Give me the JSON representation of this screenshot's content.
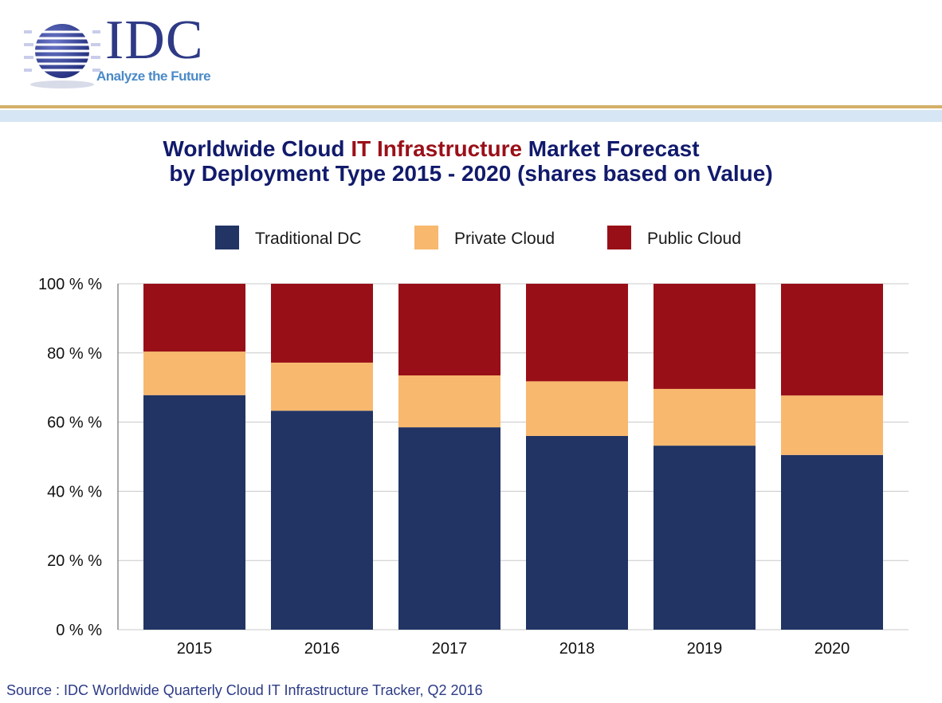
{
  "header": {
    "logo_text": "IDC",
    "tagline": "Analyze the Future",
    "colors": {
      "rule": "#d4b06a",
      "band": "#d7e6f4",
      "logo": "#2e3a86"
    }
  },
  "title": {
    "line1_a": "Worldwide Cloud ",
    "line1_accent": "IT Infrastructure",
    "line1_b": " Market Forecast",
    "line2": "by Deployment Type  2015 - 2020 (shares based on Value)"
  },
  "source": "Source : IDC Worldwide Quarterly Cloud IT Infrastructure Tracker, Q2 2016",
  "chart_data": {
    "type": "bar",
    "stacked": true,
    "categories": [
      "2015",
      "2016",
      "2017",
      "2018",
      "2019",
      "2020"
    ],
    "series": [
      {
        "name": "Traditional DC",
        "color": "#213464",
        "values": [
          67.8,
          63.3,
          58.5,
          56.0,
          53.2,
          50.5
        ]
      },
      {
        "name": "Private Cloud",
        "color": "#f8b86e",
        "values": [
          12.6,
          13.9,
          15.0,
          15.8,
          16.4,
          17.2
        ]
      },
      {
        "name": "Public Cloud",
        "color": "#990f17",
        "values": [
          19.6,
          22.8,
          26.5,
          28.2,
          30.4,
          32.3
        ]
      }
    ],
    "y_ticks": [
      "0 % %",
      "20 % %",
      "40 % %",
      "60 % %",
      "80 % %",
      "100 % %"
    ],
    "ylim": [
      0,
      100
    ],
    "grid": true,
    "legend_position": "top"
  }
}
